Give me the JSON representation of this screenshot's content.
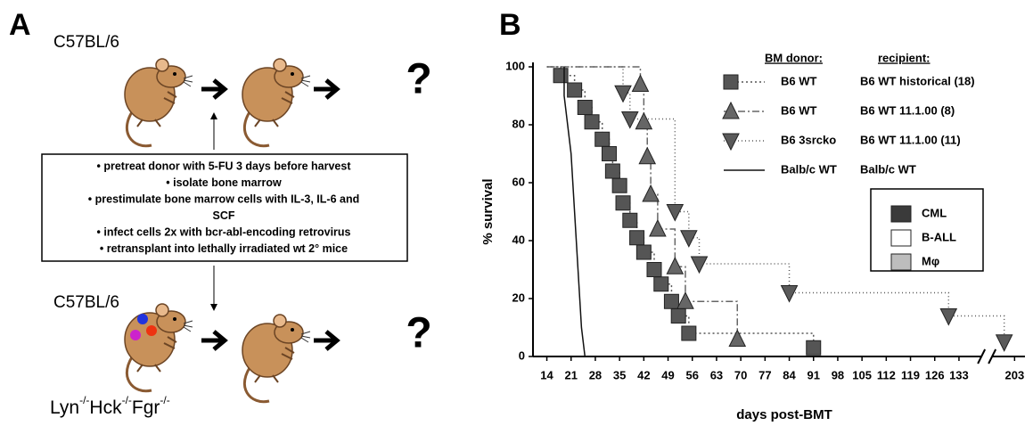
{
  "panel_a": {
    "label": "A",
    "strain_top": "C57BL/6",
    "strain_bottom": "C57BL/6",
    "genotype": [
      "Lyn",
      "-/-",
      "Hck",
      "-/-",
      "Fgr",
      "-/-"
    ],
    "unknown_top": "?",
    "unknown_bottom": "?",
    "protocol": [
      "• pretreat donor with 5-FU 3 days before harvest",
      "• isolate bone marrow",
      "• prestimulate bone marrow cells with IL-3, IL-6 and",
      "SCF",
      "• infect cells 2x with bcr-abl-encoding retrovirus",
      "• retransplant into lethally irradiated wt 2° mice"
    ]
  },
  "chart_data": {
    "type": "survival",
    "panel_label": "B",
    "x_label": "days post-BMT",
    "y_label": "% survival",
    "xlim": [
      10,
      206
    ],
    "x_break": [
      140,
      196
    ],
    "xticks": [
      14,
      21,
      28,
      35,
      42,
      49,
      56,
      63,
      70,
      77,
      84,
      91,
      98,
      105,
      112,
      119,
      126,
      133,
      203
    ],
    "ylim": [
      0,
      100
    ],
    "yticks": [
      0,
      20,
      40,
      60,
      80,
      100
    ],
    "legend_headers": [
      "BM donor:",
      "recipient:"
    ],
    "series": [
      {
        "donor": "B6 WT",
        "name": "B6 WT historical (18)",
        "marker": "square",
        "dash": "2,3",
        "color": "#555555",
        "x": [
          18,
          22,
          25,
          27,
          30,
          32,
          33,
          35,
          36,
          38,
          40,
          42,
          45,
          47,
          50,
          52,
          55,
          91
        ],
        "values": [
          97,
          92,
          86,
          81,
          75,
          70,
          64,
          59,
          53,
          47,
          41,
          36,
          30,
          25,
          19,
          14,
          8,
          3
        ]
      },
      {
        "donor": "B6 WT",
        "name": "B6 WT 11.1.00 (8)",
        "marker": "triangle-up",
        "dash": "8,3,2,3",
        "color": "#666666",
        "x": [
          41,
          42,
          43,
          44,
          46,
          51,
          54,
          69
        ],
        "values": [
          94,
          81,
          69,
          56,
          44,
          31,
          19,
          6
        ]
      },
      {
        "donor": "B6 3srcko",
        "name": "B6 WT 11.1.00 (11)",
        "marker": "triangle-down",
        "dash": "1,3",
        "color": "#5a5a5a",
        "x": [
          36,
          38,
          51,
          55,
          58,
          84,
          130,
          200
        ],
        "values": [
          91,
          82,
          50,
          41,
          32,
          22,
          14,
          5
        ]
      },
      {
        "donor": "Balb/c WT",
        "name": "Balb/c WT",
        "marker": "none",
        "dash": "none",
        "color": "#111111",
        "x": [
          19,
          20,
          21,
          21.5,
          22,
          22.5,
          23,
          23.5,
          24,
          25
        ],
        "values": [
          90,
          80,
          70,
          60,
          50,
          40,
          30,
          20,
          10,
          0
        ]
      }
    ],
    "disease_legend": [
      {
        "name": "CML",
        "color": "#3a3a3a"
      },
      {
        "name": "B-ALL",
        "color": "#ffffff"
      },
      {
        "name": "Mφ",
        "color": "#bdbdbd"
      }
    ]
  }
}
